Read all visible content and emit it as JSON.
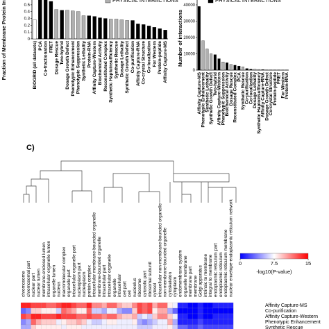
{
  "chart_data": [
    {
      "type": "bar",
      "ylabel": "Fraction of Membrane Protein Interactions",
      "legend": [
        {
          "label": "PHYSICAL INTERACTIONS",
          "color": "#b0b0b0"
        }
      ],
      "categories": [
        "BIOGRID (all datasets)",
        "PCA",
        "Co-fractionation",
        "FRET",
        "Dosage Rescue",
        "Two-hybrid",
        "Dosage Growth Defect",
        "Phenotypic Enhancement",
        "Phenotypic Suppression",
        "Synthetic Lethality",
        "Protein-RNA",
        "Affinity Capture-Western",
        "Biochemical Activity",
        "Reconstituted Complex",
        "Synthetic Haploinsufficiency",
        "Synthetic Rescue",
        "Dosage Lethality",
        "Synthetic Growth Defect",
        "Co-purification",
        "Affinity Capture-RNA",
        "Co-crystal Structure",
        "Co-localization",
        "Far Western",
        "Protein-peptide",
        "Affinity Capture-MS"
      ],
      "values": [
        0.28,
        0.6,
        0.6,
        0.55,
        0.43,
        0.42,
        0.42,
        0.41,
        0.4,
        0.34,
        0.34,
        0.33,
        0.31,
        0.3,
        0.29,
        0.29,
        0.28,
        0.27,
        0.27,
        0.22,
        0.21,
        0.19,
        0.17,
        0.15,
        0.13
      ],
      "colors": [
        "#ffffff",
        "#000000",
        "#000000",
        "#000000",
        "#b0b0b0",
        "#000000",
        "#b0b0b0",
        "#b0b0b0",
        "#b0b0b0",
        "#b0b0b0",
        "#000000",
        "#000000",
        "#000000",
        "#000000",
        "#b0b0b0",
        "#b0b0b0",
        "#b0b0b0",
        "#b0b0b0",
        "#000000",
        "#000000",
        "#000000",
        "#000000",
        "#000000",
        "#000000",
        "#000000"
      ],
      "ylim": [
        0,
        0.55
      ],
      "yticks": [
        0,
        0.1,
        0.2,
        0.3,
        0.4,
        0.5
      ]
    },
    {
      "type": "bar",
      "ylabel": "Number of interactions",
      "legend": [
        {
          "label": "PHYSICAL INTERACTIONS",
          "color": "#000000"
        }
      ],
      "categories": [
        "Affinity Capture-MS",
        "Phenotypic Enhancement",
        "Synthetic Lethality",
        "Synthetic Growth Defect",
        "Two-hybrid",
        "Affinity Capture-Western",
        "Phenotypic Suppression",
        "Biochemical Activity",
        "Dosage Rescue",
        "Reconstituted Complex",
        "PCA",
        "Synthetic Rescue",
        "Co-purification",
        "Co-localization",
        "Dosage Lethality",
        "Synthetic Haploinsufficiency",
        "Affinity Capture-RNA",
        "Dosage Growth Defect",
        "Co-crystal Structure",
        "Protein-peptide",
        "FRET",
        "Far Western",
        "Protein-RNA"
      ],
      "values": [
        39000,
        18000,
        13000,
        10000,
        9500,
        7000,
        5000,
        4500,
        3500,
        3000,
        2500,
        2000,
        1000,
        600,
        500,
        400,
        300,
        200,
        150,
        100,
        80,
        60,
        50
      ],
      "colors": [
        "#000000",
        "#b0b0b0",
        "#b0b0b0",
        "#b0b0b0",
        "#000000",
        "#000000",
        "#b0b0b0",
        "#000000",
        "#b0b0b0",
        "#000000",
        "#000000",
        "#b0b0b0",
        "#000000",
        "#000000",
        "#b0b0b0",
        "#b0b0b0",
        "#000000",
        "#b0b0b0",
        "#000000",
        "#000000",
        "#000000",
        "#000000",
        "#000000"
      ],
      "ylim": [
        0,
        40000
      ],
      "yticks": [
        0,
        10000,
        20000,
        30000,
        40000
      ]
    },
    {
      "type": "heatmap",
      "panel_label": "C)",
      "columns": [
        "chromosome",
        "chromosomal part",
        "nuclear part",
        "nuclear lumen",
        "membrane-enclosed lumen",
        "intracellular organelle lumen",
        "organelle lumen",
        "nucleus",
        "macromolecular complex",
        "organelle part",
        "intracellular organelle part",
        "nucleoplasm part",
        "nucleoplasm",
        "protein complex",
        "intracellular membrane-bounded organelle",
        "membrane-bounded organelle",
        "intracellular part",
        "intracellular organelle",
        "organelle",
        "intracellular",
        "cell part",
        "cell",
        "nucleolus",
        "ribosome",
        "cytosolic part",
        "ribosomal subunit",
        "cytosol",
        "intracellular non-membrane-bounded organelle",
        "non-membrane-bounded organelle",
        "cytoskeleton",
        "cytoplasm",
        "endomembrane system",
        "organelle membrane",
        "membrane part",
        "membrane",
        "Golgi apparatus",
        "intrinsic to membrane",
        "integral to membrane",
        "endoplasmic reticulum part",
        "endoplasmic reticulum",
        "endoplasmic reticulum membrane",
        "nuclear envelope-endoplasmic reticulum network"
      ],
      "rows": [
        "Affinity Capture-MS",
        "Co-purification",
        "Affinity Capture-Western",
        "Phenotypic Enhancement",
        "Synthetic Rescue"
      ],
      "values": [
        [
          14,
          14,
          13,
          13,
          13,
          12,
          12,
          13,
          14,
          14,
          13,
          12,
          12,
          14,
          11,
          11,
          10,
          12,
          12,
          10,
          9,
          9,
          11,
          13,
          12,
          13,
          10,
          12,
          12,
          8,
          7,
          1,
          1,
          0,
          0,
          1,
          0,
          0,
          1,
          1,
          1,
          1
        ],
        [
          3,
          4,
          9,
          9,
          8,
          8,
          8,
          6,
          12,
          11,
          10,
          8,
          8,
          12,
          6,
          6,
          5,
          7,
          7,
          5,
          4,
          4,
          9,
          13,
          12,
          13,
          8,
          10,
          10,
          5,
          3,
          0,
          0,
          0,
          0,
          1,
          0,
          0,
          0,
          0,
          0,
          0
        ],
        [
          13,
          12,
          14,
          14,
          13,
          13,
          13,
          14,
          13,
          13,
          13,
          12,
          12,
          13,
          12,
          12,
          11,
          12,
          12,
          10,
          9,
          9,
          10,
          6,
          7,
          6,
          9,
          11,
          11,
          9,
          7,
          1,
          1,
          0,
          0,
          1,
          0,
          0,
          1,
          1,
          1,
          1
        ],
        [
          4,
          5,
          12,
          10,
          9,
          9,
          9,
          7,
          8,
          9,
          9,
          10,
          9,
          7,
          6,
          6,
          7,
          8,
          8,
          7,
          7,
          7,
          8,
          5,
          4,
          5,
          6,
          7,
          7,
          10,
          5,
          1,
          1,
          1,
          1,
          2,
          1,
          1,
          1,
          1,
          1,
          1
        ],
        [
          5,
          5,
          9,
          8,
          8,
          8,
          8,
          8,
          7,
          8,
          8,
          8,
          7,
          7,
          7,
          7,
          7,
          7,
          7,
          7,
          7,
          7,
          7,
          6,
          6,
          6,
          7,
          7,
          7,
          8,
          6,
          3,
          3,
          2,
          2,
          3,
          2,
          2,
          2,
          2,
          2,
          2
        ]
      ],
      "zlim": [
        0,
        15
      ],
      "zticks": [
        0,
        7.5,
        15
      ],
      "zcolors": [
        "#0000ff",
        "#ffffff",
        "#ff0000"
      ],
      "zlabel": "-log10(P-value)"
    }
  ]
}
